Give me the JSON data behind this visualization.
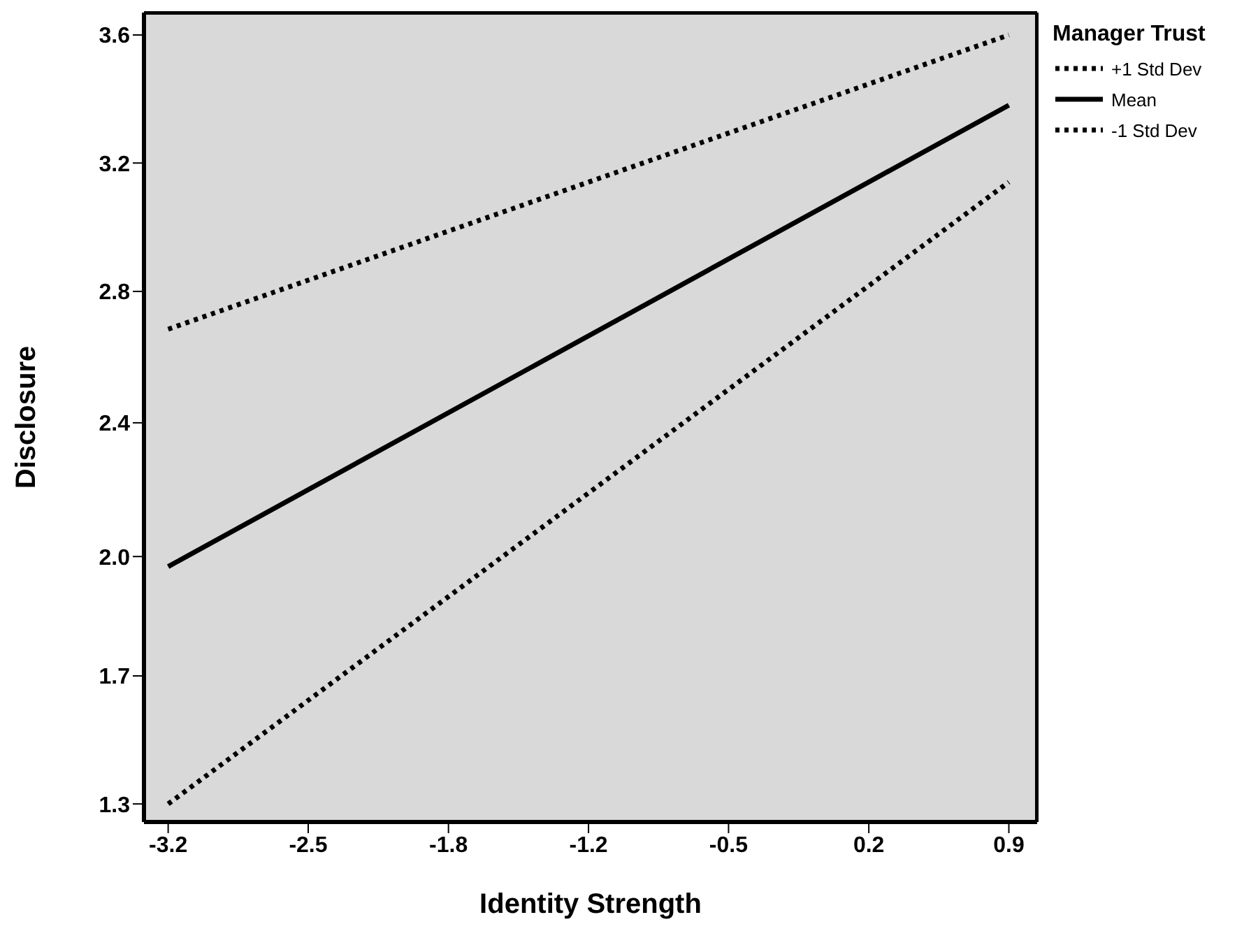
{
  "chart_data": {
    "type": "line",
    "xlabel": "Identity Strength",
    "ylabel": "Disclosure",
    "legend_title": "Manager Trust",
    "legend": "top right",
    "x": [
      -3.2,
      0.9
    ],
    "xlim": [
      -3.318,
      1.038
    ],
    "xticks": [
      -3.2,
      {
        "value": -2.517,
        "label": "-2.5"
      },
      {
        "value": -1.833,
        "label": "-1.8"
      },
      {
        "value": -1.15,
        "label": "-1.2"
      },
      {
        "value": -0.467,
        "label": "-0.5"
      },
      {
        "value": 0.217,
        "label": "0.2"
      },
      0.9
    ],
    "ylim": [
      1.246,
      3.667
    ],
    "yticks": [
      1.3,
      {
        "value": 1.683,
        "label": "1.7"
      },
      {
        "value": 2.04,
        "label": "2.0"
      },
      {
        "value": 2.44,
        "label": "2.4"
      },
      {
        "value": 2.833,
        "label": "2.8"
      },
      {
        "value": 3.217,
        "label": "3.2"
      },
      3.6
    ],
    "series": [
      {
        "name": "+1 Std Dev",
        "color": "#000000",
        "line_style": "dotted",
        "values": [
          2.72,
          3.6
        ]
      },
      {
        "name": "Mean",
        "color": "#000000",
        "line_style": "solid",
        "values": [
          2.01,
          3.39
        ]
      },
      {
        "name": "-1 Std Dev",
        "color": "#000000",
        "line_style": "dotted",
        "values": [
          1.3,
          3.16
        ]
      }
    ]
  }
}
